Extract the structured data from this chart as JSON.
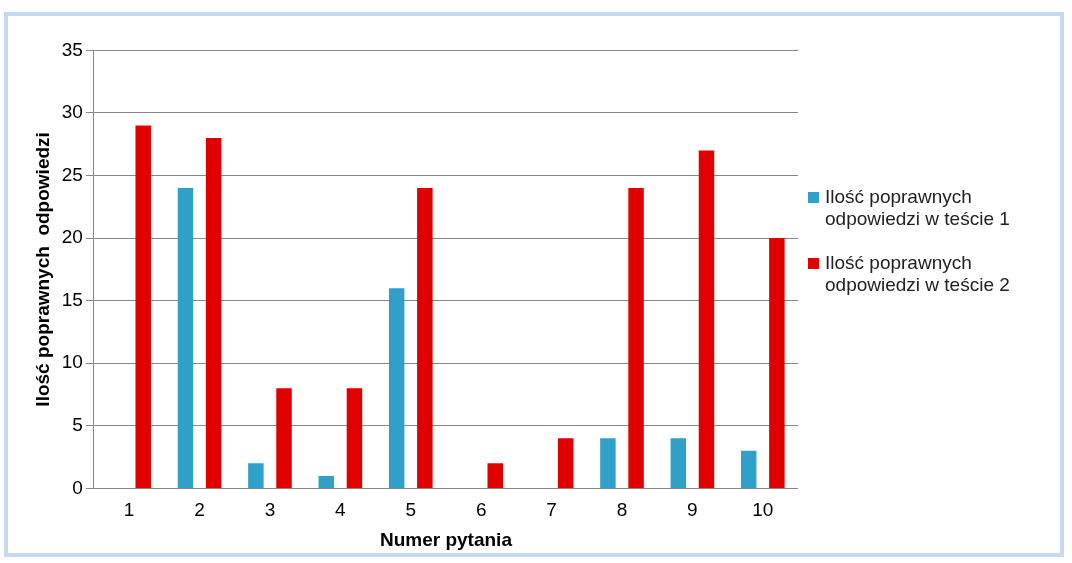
{
  "chart_data": {
    "type": "bar",
    "categories": [
      "1",
      "2",
      "3",
      "4",
      "5",
      "6",
      "7",
      "8",
      "9",
      "10"
    ],
    "series": [
      {
        "name": "Ilość poprawnych odpowiedzi w teście 1",
        "color": "#31a0c8",
        "values": [
          0,
          24,
          2,
          1,
          16,
          0,
          0,
          4,
          4,
          3
        ]
      },
      {
        "name": "Ilość poprawnych odpowiedzi w teście 2",
        "color": "#e00000",
        "values": [
          29,
          28,
          8,
          8,
          24,
          2,
          4,
          24,
          27,
          20
        ]
      }
    ],
    "xlabel": "Numer pytania",
    "ylabel": "Ilość poprawnych  odpowiedzi",
    "ylim": [
      0,
      35
    ],
    "yticks": [
      0,
      5,
      10,
      15,
      20,
      25,
      30,
      35
    ],
    "grid": "y",
    "legend": "right"
  }
}
